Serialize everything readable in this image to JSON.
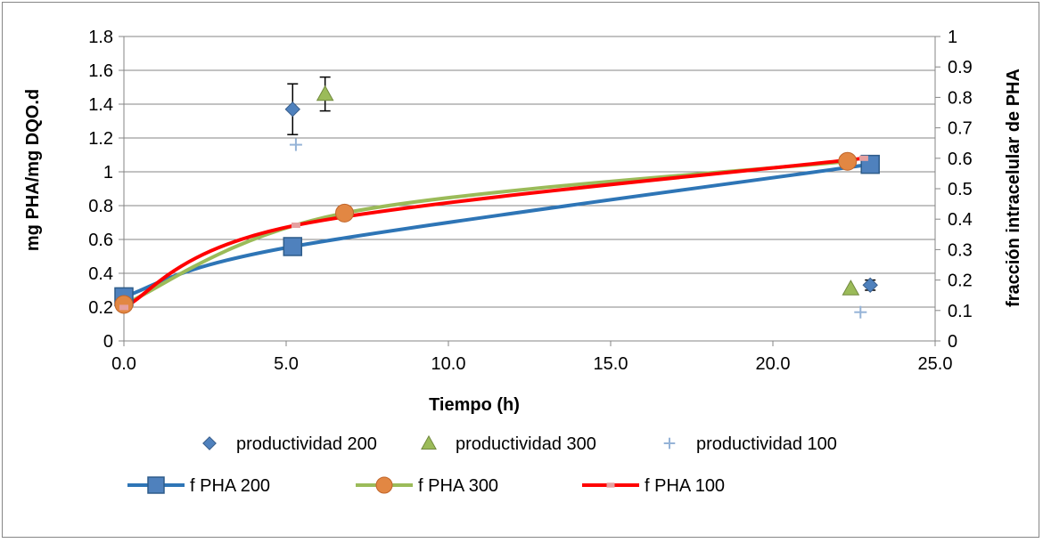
{
  "chart_data": {
    "type": "scatter",
    "title": "",
    "xlabel": "Tiempo (h)",
    "ylabel": "mg PHA/mg DQO.d",
    "y2label": "fracción intracelular de PHA",
    "xlim": [
      0,
      25
    ],
    "ylim": [
      0,
      1.8
    ],
    "y2lim": [
      0,
      1
    ],
    "x_ticks": [
      "0.0",
      "5.0",
      "10.0",
      "15.0",
      "20.0",
      "25.0"
    ],
    "y_ticks": [
      "0",
      "0.2",
      "0.4",
      "0.6",
      "0.8",
      "1",
      "1.2",
      "1.4",
      "1.6",
      "1.8"
    ],
    "y2_ticks": [
      "0",
      "0.1",
      "0.2",
      "0.3",
      "0.4",
      "0.5",
      "0.6",
      "0.7",
      "0.8",
      "0.9",
      "1"
    ],
    "grid": "horizontal",
    "legend_position": "bottom",
    "series": [
      {
        "name": "productividad 200",
        "axis": "left",
        "marker": "diamond",
        "color": "#4f81bd",
        "points": [
          {
            "x": 5.2,
            "y": 1.37,
            "err": 0.15
          },
          {
            "x": 23.0,
            "y": 0.33,
            "err": 0.03
          }
        ]
      },
      {
        "name": "productividad 300",
        "axis": "left",
        "marker": "triangle",
        "color": "#9bbb59",
        "points": [
          {
            "x": 6.2,
            "y": 1.46,
            "err": 0.1
          },
          {
            "x": 22.4,
            "y": 0.31
          }
        ]
      },
      {
        "name": "productividad 100",
        "axis": "left",
        "marker": "plus",
        "color": "#4f81bd",
        "points": [
          {
            "x": 5.3,
            "y": 1.16
          },
          {
            "x": 22.7,
            "y": 0.17
          }
        ]
      },
      {
        "name": "f PHA 200",
        "axis": "right",
        "marker": "square",
        "color": "#4f81bd",
        "line_color": "#2e75b6",
        "points": [
          {
            "x": 0.0,
            "y": 0.145
          },
          {
            "x": 5.2,
            "y": 0.31
          },
          {
            "x": 23.0,
            "y": 0.58
          }
        ]
      },
      {
        "name": "f PHA 300",
        "axis": "right",
        "marker": "circle",
        "color": "#e28743",
        "line_color": "#9bbb59",
        "points": [
          {
            "x": 0.0,
            "y": 0.12
          },
          {
            "x": 6.8,
            "y": 0.42
          },
          {
            "x": 22.3,
            "y": 0.59
          }
        ]
      },
      {
        "name": "f PHA 100",
        "axis": "right",
        "marker": "dash",
        "color": "#e6a0a0",
        "line_color": "#ff0000",
        "points": [
          {
            "x": 0.0,
            "y": 0.11
          },
          {
            "x": 5.3,
            "y": 0.38
          },
          {
            "x": 22.8,
            "y": 0.6
          }
        ]
      }
    ]
  }
}
